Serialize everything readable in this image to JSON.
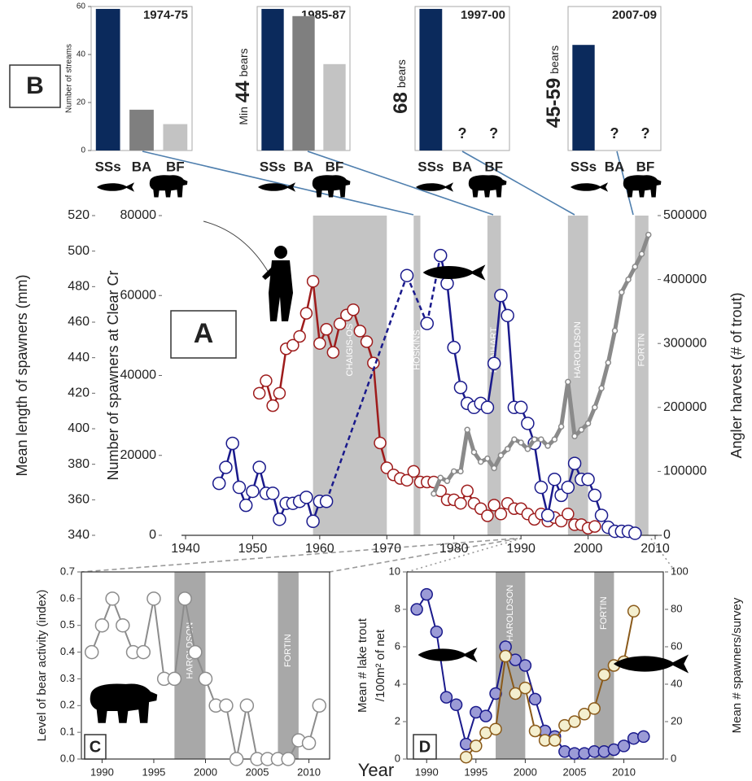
{
  "chart_data": [
    {
      "type": "bar",
      "title": "1974-75",
      "categories": [
        "SSs",
        "BA",
        "BF"
      ],
      "values": [
        59,
        17,
        11
      ],
      "colors": [
        "#0b2a5c",
        "#7f7f7f",
        "#c3c3c3"
      ],
      "ylim": [
        0,
        60
      ],
      "yticks": [
        0,
        20,
        40,
        60
      ],
      "ylabel": "Number of streams",
      "panel_label": "B"
    },
    {
      "type": "bar",
      "title": "1985-87",
      "categories": [
        "SSs",
        "BA",
        "BF"
      ],
      "values": [
        59,
        56,
        36
      ],
      "colors": [
        "#0b2a5c",
        "#7f7f7f",
        "#c3c3c3"
      ],
      "ylim": [
        0,
        60
      ],
      "annotation": [
        "Min",
        "44",
        "bears"
      ]
    },
    {
      "type": "bar",
      "title": "1997-00",
      "categories": [
        "SSs",
        "BA",
        "BF"
      ],
      "values": [
        59,
        null,
        null
      ],
      "value_labels": [
        null,
        "?",
        "?"
      ],
      "colors": [
        "#0b2a5c",
        "#7f7f7f",
        "#c3c3c3"
      ],
      "ylim": [
        0,
        60
      ],
      "annotation": [
        "68",
        "bears"
      ]
    },
    {
      "type": "bar",
      "title": "2007-09",
      "categories": [
        "SSs",
        "BA",
        "BF"
      ],
      "values": [
        44,
        null,
        null
      ],
      "value_labels": [
        null,
        "?",
        "?"
      ],
      "colors": [
        "#0b2a5c",
        "#7f7f7f",
        "#c3c3c3"
      ],
      "ylim": [
        0,
        60
      ],
      "annotation": [
        "45-59",
        "bears"
      ]
    },
    {
      "type": "line",
      "panel_label": "A",
      "frame": false,
      "xlim": [
        1940,
        2010
      ],
      "xticks": [
        1940,
        1950,
        1960,
        1970,
        1980,
        1990,
        2000,
        2010
      ],
      "ylim": [
        340,
        520
      ],
      "yticks": [
        340,
        360,
        380,
        400,
        420,
        440,
        460,
        480,
        500,
        520
      ],
      "ylabel": "Mean length of spawners (mm)",
      "y2lim": [
        0,
        80000
      ],
      "y2ticks": [
        0,
        20000,
        40000,
        60000,
        80000
      ],
      "y2label": "Number of spawners at Clear Cr",
      "y3lim": [
        0,
        500000
      ],
      "y3ticks": [
        0,
        100000,
        200000,
        300000,
        400000,
        500000
      ],
      "y3label": "Angler harvest (# of trout)",
      "period_color": "#c4c4c4",
      "periods": [
        {
          "label": "CHAIGIS-OS",
          "start": 1959,
          "end": 1970
        },
        {
          "label": "HOSKINS",
          "start": 1974,
          "end": 1975
        },
        {
          "label": "REINHART",
          "start": 1985,
          "end": 1987
        },
        {
          "label": "HAROLDSON",
          "start": 1997,
          "end": 2000
        },
        {
          "label": "FORTIN",
          "start": 2007,
          "end": 2009
        }
      ],
      "series": [
        {
          "axis": "y",
          "color": "#9e1c1c",
          "marker_fill": "#ffffff",
          "marker_size": 7,
          "line_width": 2.5,
          "x": [
            1951,
            1952,
            1953,
            1954,
            1955,
            1956,
            1957,
            1958,
            1959,
            1960,
            1961,
            1962,
            1963,
            1964,
            1965,
            1966,
            1967,
            1968,
            1969,
            1970,
            1971,
            1972,
            1973,
            1974,
            1975,
            1976,
            1977,
            1978,
            1979,
            1980,
            1981,
            1982,
            1983,
            1984,
            1985,
            1986,
            1987,
            1988,
            1989,
            1990,
            1991,
            1992,
            1993,
            1994,
            1995,
            1996,
            1997,
            1998,
            1999,
            2000,
            2001
          ],
          "values": [
            420,
            427,
            413,
            420,
            445,
            447,
            452,
            465,
            483,
            448,
            456,
            443,
            459,
            464,
            467,
            455,
            449,
            437,
            392,
            378,
            374,
            372,
            371,
            376,
            370,
            370,
            370,
            365,
            360,
            360,
            358,
            365,
            358,
            355,
            351,
            357,
            352,
            358,
            355,
            355,
            352,
            349,
            352,
            348,
            350,
            348,
            352,
            346,
            346,
            344,
            345
          ]
        },
        {
          "axis": "y2",
          "color": "#1a1a8c",
          "marker_fill": "#ffffff",
          "marker_size": 7.5,
          "line_width": 2.5,
          "gap_line": "dashed",
          "x": [
            1945,
            1946,
            1947,
            1948,
            1949,
            1950,
            1951,
            1952,
            1953,
            1954,
            1955,
            1956,
            1957,
            1958,
            1959,
            1960,
            1961,
            1973,
            1976,
            1978,
            1979,
            1980,
            1981,
            1982,
            1983,
            1984,
            1985,
            1986,
            1987,
            1988,
            1989,
            1990,
            1991,
            1992,
            1993,
            1994,
            1995,
            1996,
            1997,
            1998,
            1999,
            2000,
            2001,
            2002,
            2003,
            2004,
            2005,
            2006,
            2007
          ],
          "values": [
            13000,
            17000,
            23000,
            12000,
            7500,
            11000,
            17000,
            10500,
            10500,
            4000,
            8000,
            8000,
            8500,
            9500,
            3500,
            8500,
            8500,
            65000,
            53000,
            70000,
            63000,
            47000,
            37000,
            33000,
            32000,
            33000,
            32000,
            43000,
            60000,
            55000,
            32000,
            32000,
            28000,
            23000,
            12000,
            5000,
            14000,
            10000,
            12000,
            18000,
            14000,
            14000,
            10000,
            5000,
            2000,
            1000,
            1000,
            1000,
            500
          ]
        },
        {
          "axis": "y3",
          "color": "#8a8a8a",
          "marker_fill": "#ffffff",
          "marker_size": 3,
          "line_width": 5,
          "x": [
            1977,
            1978,
            1979,
            1980,
            1981,
            1982,
            1983,
            1984,
            1985,
            1986,
            1987,
            1988,
            1989,
            1990,
            1991,
            1992,
            1993,
            1994,
            1995,
            1996,
            1997,
            1998,
            1999,
            2000,
            2001,
            2002,
            2003,
            2004,
            2005,
            2006,
            2007,
            2008,
            2009
          ],
          "values": [
            65000,
            90000,
            85000,
            100000,
            100000,
            165000,
            130000,
            115000,
            120000,
            105000,
            125000,
            135000,
            150000,
            145000,
            135000,
            150000,
            150000,
            140000,
            150000,
            170000,
            240000,
            155000,
            165000,
            175000,
            200000,
            230000,
            270000,
            320000,
            380000,
            400000,
            420000,
            440000,
            470000
          ]
        }
      ]
    },
    {
      "type": "line",
      "panel_label": "C",
      "frame": true,
      "xlim": [
        1988,
        2012
      ],
      "xticks": [
        1990,
        1995,
        2000,
        2005,
        2010
      ],
      "ylim": [
        0,
        0.7
      ],
      "yticks": [
        {
          "value": 0,
          "label": "0.0"
        },
        0.1,
        0.2,
        0.3,
        0.4,
        0.5,
        0.6,
        0.7
      ],
      "ylabel": "Level of bear activity (index)",
      "period_color": "#a8a8a8",
      "periods": [
        {
          "label": "HAROLDSON",
          "start": 1997,
          "end": 2000
        },
        {
          "label": "FORTIN",
          "start": 2007,
          "end": 2009
        }
      ],
      "series": [
        {
          "axis": "y",
          "color": "#8c8c8c",
          "marker_fill": "#ffffff",
          "marker_size": 8,
          "line_width": 2,
          "x": [
            1989,
            1990,
            1991,
            1992,
            1993,
            1994,
            1995,
            1996,
            1997,
            1998,
            1999,
            2000,
            2001,
            2002,
            2003,
            2004,
            2005,
            2006,
            2007,
            2008,
            2009,
            2010,
            2011
          ],
          "values": [
            0.4,
            0.5,
            0.6,
            0.5,
            0.4,
            0.4,
            0.6,
            0.3,
            0.3,
            0.6,
            0.4,
            0.3,
            0.2,
            0.2,
            0.0,
            0.2,
            0.0,
            0.0,
            0.0,
            0.0,
            0.07,
            0.06,
            0.2
          ]
        }
      ]
    },
    {
      "type": "line",
      "panel_label": "D",
      "frame": true,
      "xlabel": "Year",
      "xlim": [
        1988,
        2014
      ],
      "xticks": [
        1990,
        1995,
        2000,
        2005,
        2010
      ],
      "ylim": [
        0,
        10
      ],
      "yticks": [
        0,
        2,
        4,
        6,
        8,
        10
      ],
      "ylabel": [
        "Mean # lake trout",
        "/100m² of net"
      ],
      "y2lim": [
        0,
        100
      ],
      "y2ticks": [
        0,
        20,
        40,
        60,
        80,
        100
      ],
      "y2label": "Mean # spawners/survey",
      "period_color": "#a8a8a8",
      "periods": [
        {
          "label": "HAROLDSON",
          "start": 1997,
          "end": 2000
        },
        {
          "label": "FORTIN",
          "start": 2007,
          "end": 2009
        }
      ],
      "series": [
        {
          "axis": "y",
          "color": "#1a1a8c",
          "marker_fill": "#9b9bd6",
          "marker_size": 7,
          "line_width": 2,
          "x": [
            1989,
            1990,
            1991,
            1992,
            1993,
            1994,
            1995,
            1996,
            1997,
            1998,
            1999,
            2000,
            2001,
            2002,
            2003,
            2004,
            2005,
            2006,
            2007,
            2008,
            2009,
            2010,
            2011,
            2012
          ],
          "values": [
            8.0,
            8.8,
            6.8,
            3.3,
            2.9,
            0.8,
            2.5,
            2.3,
            3.5,
            6.0,
            5.3,
            5.0,
            3.2,
            1.5,
            1.2,
            0.4,
            0.3,
            0.3,
            0.4,
            0.4,
            0.5,
            0.7,
            1.1,
            1.2
          ]
        },
        {
          "axis": "y2",
          "color": "#8a5a1a",
          "marker_fill": "#f4efcf",
          "marker_size": 7,
          "line_width": 2,
          "x": [
            1994,
            1995,
            1996,
            1997,
            1998,
            1999,
            2000,
            2001,
            2002,
            2003,
            2004,
            2005,
            2006,
            2007,
            2008,
            2009,
            2010,
            2011
          ],
          "values": [
            1,
            7,
            14,
            16,
            55,
            35,
            38,
            15,
            10,
            10,
            18,
            20,
            24,
            27,
            45,
            50,
            52,
            79
          ]
        }
      ]
    }
  ]
}
